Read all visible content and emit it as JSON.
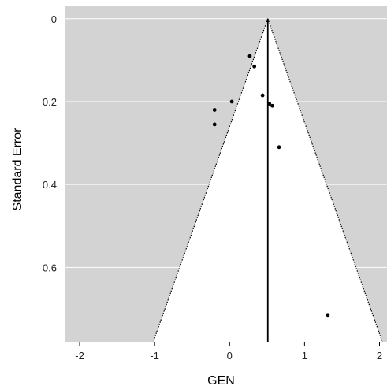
{
  "chart_data": {
    "type": "scatter",
    "subtype": "funnel plot",
    "xlabel": "GEN",
    "ylabel": "Standard Error",
    "xlim": [
      -2.2,
      2.1
    ],
    "ylim": [
      0.78,
      -0.03
    ],
    "y_axis_inverted": true,
    "x_ticks": [
      -2,
      -1,
      0,
      1,
      2
    ],
    "x_tick_labels": [
      "-2",
      "-1",
      "0",
      "1",
      "2"
    ],
    "y_ticks": [
      0,
      0.2,
      0.4,
      0.6
    ],
    "y_tick_labels": [
      "0",
      "0.2",
      "0.4",
      "0.6"
    ],
    "horizontal_gridlines": true,
    "pooled_estimate": 0.51,
    "funnel_half_width_per_se": 1.96,
    "points": [
      {
        "x": 0.27,
        "y": 0.09
      },
      {
        "x": 0.33,
        "y": 0.115
      },
      {
        "x": 0.44,
        "y": 0.185
      },
      {
        "x": 0.53,
        "y": 0.205
      },
      {
        "x": 0.57,
        "y": 0.21
      },
      {
        "x": 0.03,
        "y": 0.2
      },
      {
        "x": -0.2,
        "y": 0.22
      },
      {
        "x": -0.2,
        "y": 0.255
      },
      {
        "x": 0.66,
        "y": 0.31
      },
      {
        "x": 1.31,
        "y": 0.715
      }
    ],
    "colors": {
      "panel_background": "#d3d3d3",
      "funnel_fill": "#ffffff",
      "gridline": "#ffffff",
      "funnel_edge": "#000000",
      "pooled_line": "#000000",
      "point": "#000000"
    }
  }
}
